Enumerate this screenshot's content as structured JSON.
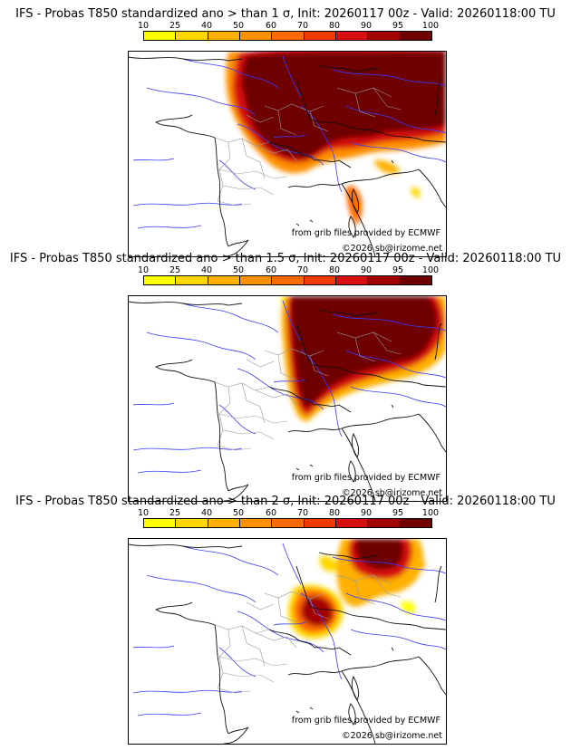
{
  "panels": [
    {
      "title": "IFS - Probas T850  standardized ano > than 1 σ, Init: 20260117 00z - Valid: 20260118:00 TU"
    },
    {
      "title": "IFS - Probas T850  standardized ano > than 1.5 σ, Init: 20260117 00z - Valid: 20260118:00 TU"
    },
    {
      "title": "IFS - Probas T850  standardized ano > than 2 σ, Init: 20260117 00z - Valid: 20260118:00 TU"
    }
  ],
  "scale": {
    "labels": [
      "10",
      "25",
      "40",
      "50",
      "60",
      "70",
      "80",
      "90",
      "95",
      "100"
    ],
    "colors": [
      "#ffff00",
      "#ffd700",
      "#ffb000",
      "#ff9000",
      "#ff6a00",
      "#f03a00",
      "#d61010",
      "#a30000",
      "#6e0000"
    ]
  },
  "credits": {
    "source": "from grib files provided by ECMWF",
    "copyright": "©2026 sb@irizome.net"
  }
}
